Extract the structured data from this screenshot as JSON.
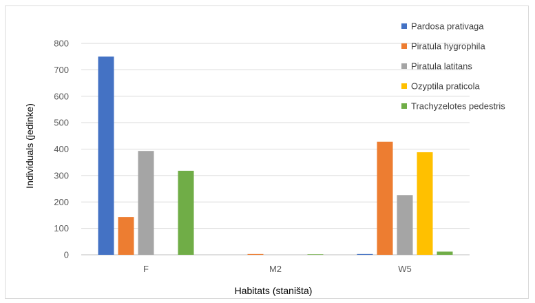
{
  "chart_data": {
    "type": "bar",
    "title": "",
    "xlabel": "Habitats (staništa)",
    "ylabel": "Individuals (jedinke)",
    "categories": [
      "F",
      "M2",
      "W5"
    ],
    "ylim": [
      0,
      800
    ],
    "yticks": [
      0,
      100,
      200,
      300,
      400,
      500,
      600,
      700,
      800
    ],
    "grid": true,
    "legend_position": "top-right",
    "series": [
      {
        "name": "Pardosa prativaga",
        "color": "#4472C4",
        "values": [
          750,
          0,
          3
        ]
      },
      {
        "name": "Piratula hygrophila",
        "color": "#ED7D31",
        "values": [
          143,
          3,
          428
        ]
      },
      {
        "name": "Piratula latitans",
        "color": "#A5A5A5",
        "values": [
          393,
          0,
          226
        ]
      },
      {
        "name": "Ozyptila praticola",
        "color": "#FFC000",
        "values": [
          0,
          0,
          388
        ]
      },
      {
        "name": "Trachyzelotes pedestris",
        "color": "#70AD47",
        "values": [
          318,
          2,
          12
        ]
      }
    ]
  }
}
